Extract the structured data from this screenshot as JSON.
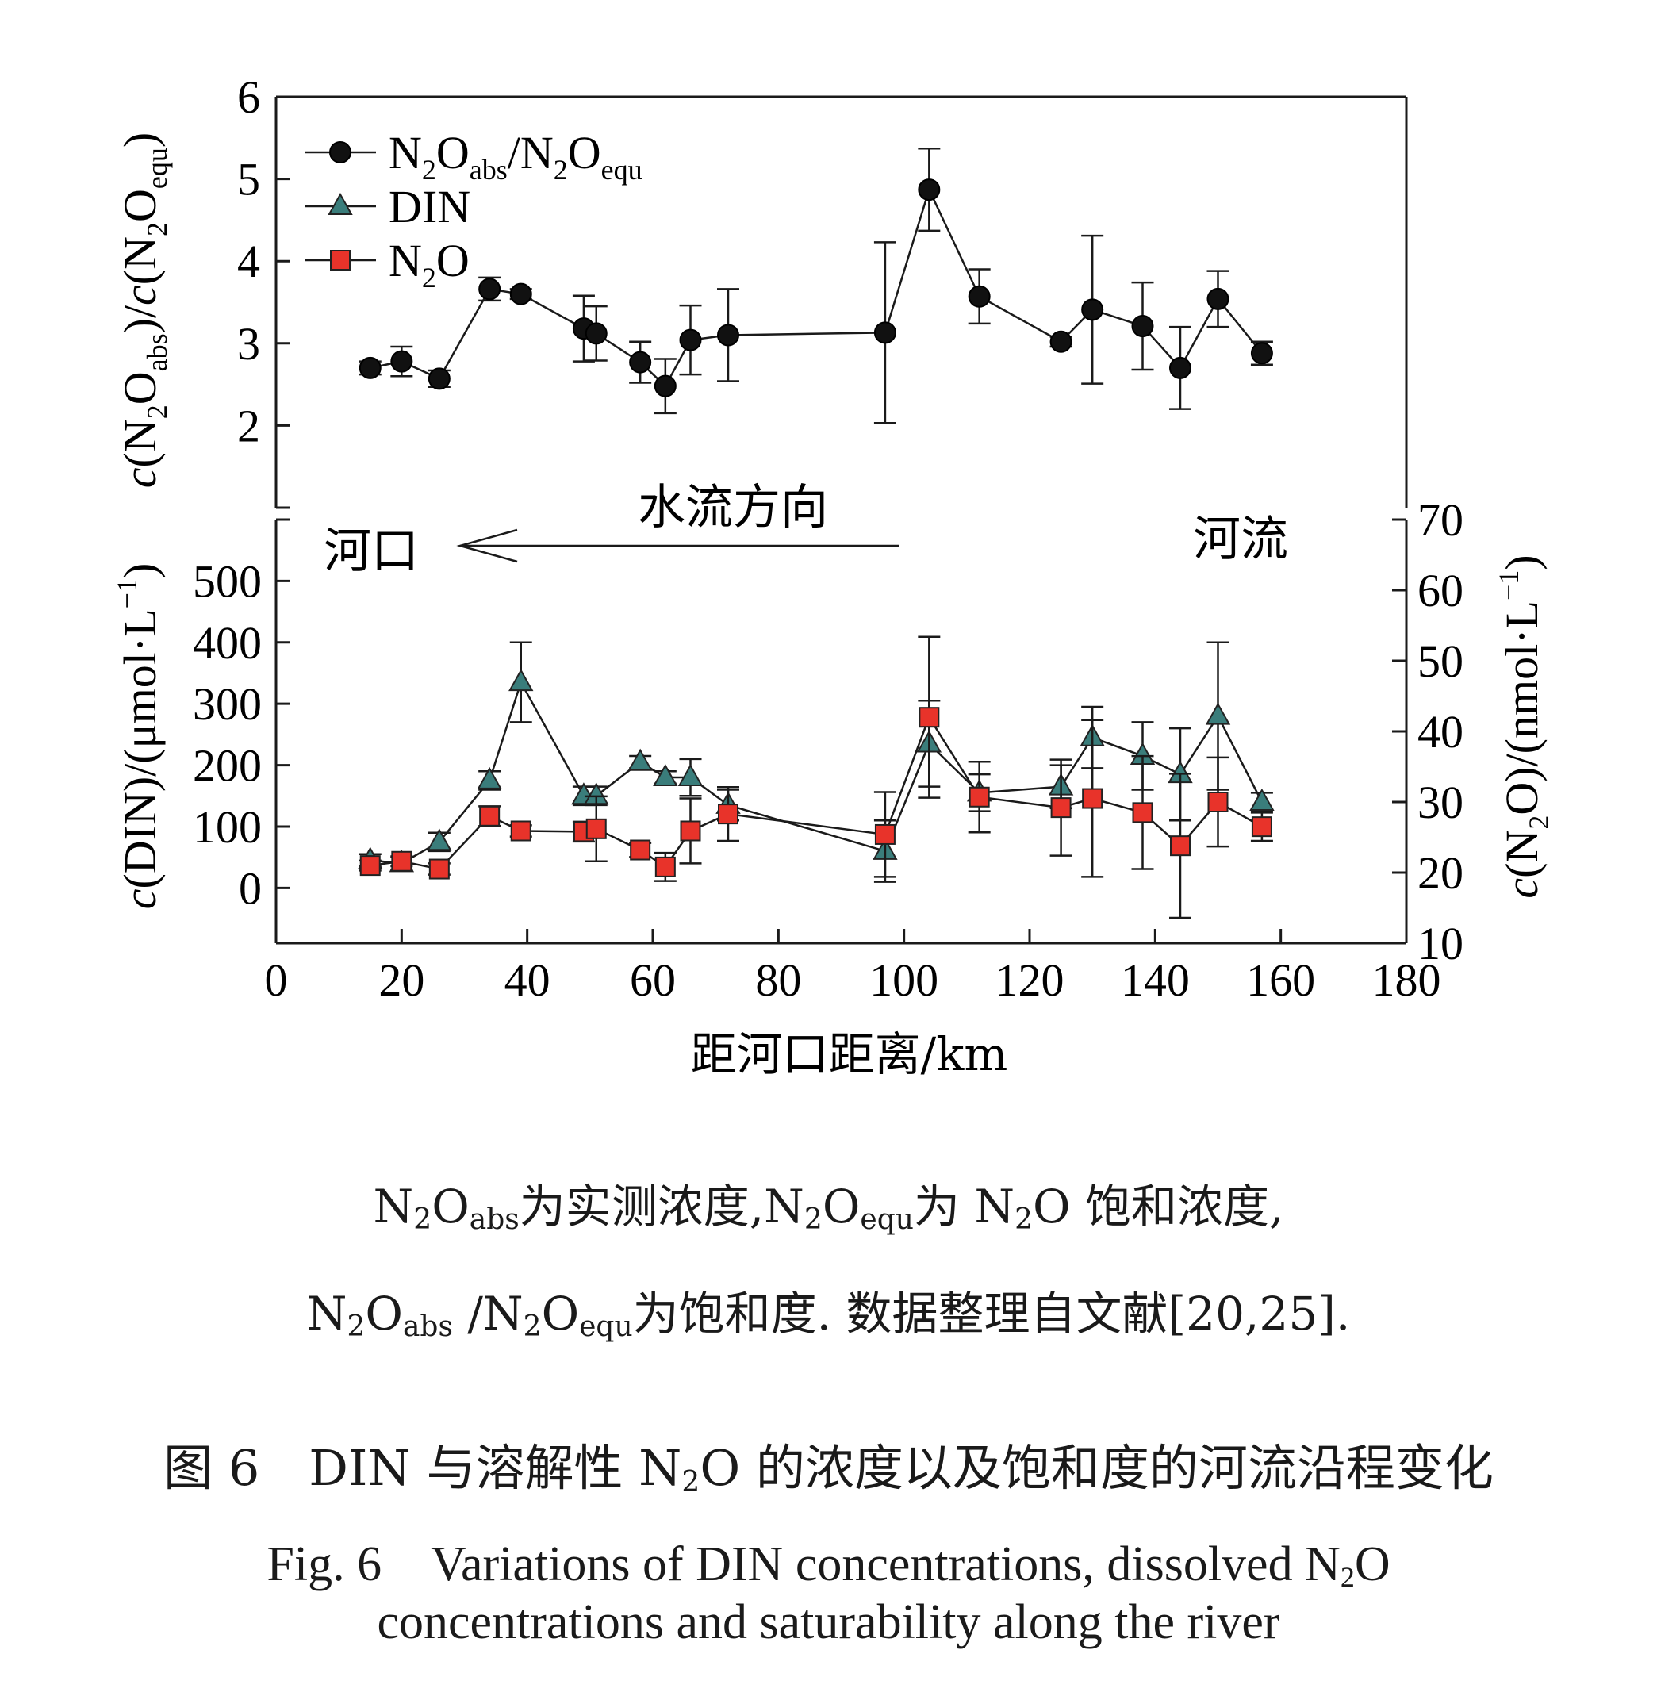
{
  "chart_data": [
    {
      "type": "line",
      "panel": "top",
      "ylabel_parts": [
        "c",
        "(N",
        "2",
        "O",
        "abs",
        ")/",
        "c",
        "(N",
        "2",
        "O",
        "equ",
        ")"
      ],
      "x": [
        15,
        20,
        26,
        34,
        39,
        49,
        51,
        58,
        62,
        66,
        72,
        97,
        104,
        112,
        125,
        130,
        138,
        144,
        150,
        157
      ],
      "ylim": [
        1,
        6
      ],
      "yticks": [
        2,
        3,
        4,
        5,
        6
      ],
      "series": [
        {
          "name": "N2Oabs/N2Oequ",
          "marker": "circle",
          "color": "#111111",
          "values": [
            2.7,
            2.78,
            2.57,
            3.66,
            3.6,
            3.18,
            3.12,
            2.77,
            2.48,
            3.04,
            3.1,
            3.13,
            4.87,
            3.57,
            3.02,
            3.41,
            3.21,
            2.7,
            3.54,
            2.88
          ],
          "errors": [
            0.08,
            0.18,
            0.1,
            0.14,
            0.06,
            0.4,
            0.33,
            0.25,
            0.33,
            0.42,
            0.56,
            1.1,
            0.5,
            0.33,
            0.06,
            0.9,
            0.53,
            0.5,
            0.34,
            0.14
          ]
        }
      ]
    },
    {
      "type": "line",
      "panel": "bottom",
      "x": [
        15,
        20,
        26,
        34,
        39,
        49,
        51,
        58,
        62,
        66,
        72,
        97,
        104,
        112,
        125,
        130,
        138,
        144,
        150,
        157
      ],
      "ylim_left": [
        -90,
        600
      ],
      "yticks_left": [
        0,
        100,
        200,
        300,
        400,
        500
      ],
      "ylim_right": [
        10,
        70
      ],
      "yticks_right": [
        10,
        20,
        30,
        40,
        50,
        60,
        70
      ],
      "series": [
        {
          "name": "DIN",
          "axis": "left",
          "marker": "triangle",
          "color": "#3a7d7b",
          "values": [
            45,
            40,
            75,
            175,
            335,
            150,
            150,
            205,
            180,
            180,
            135,
            60,
            235,
            155,
            165,
            245,
            215,
            185,
            280,
            140
          ],
          "errors": [
            10,
            10,
            15,
            15,
            65,
            15,
            15,
            10,
            10,
            30,
            25,
            50,
            70,
            30,
            35,
            50,
            55,
            75,
            120,
            15
          ]
        },
        {
          "name": "N2O",
          "axis": "right",
          "marker": "square",
          "color": "#e8332a",
          "values": [
            21.0,
            21.6,
            20.5,
            28.0,
            25.9,
            25.8,
            26.2,
            23.2,
            20.8,
            25.9,
            28.3,
            25.4,
            42.0,
            30.7,
            29.2,
            30.5,
            28.5,
            23.8,
            30.0,
            26.5
          ],
          "errors": [
            0.7,
            0.7,
            0.8,
            1.4,
            0.8,
            1.4,
            4.6,
            1.0,
            2.0,
            4.6,
            3.8,
            6.0,
            11.4,
            5.0,
            6.8,
            11.1,
            8.0,
            10.2,
            6.3,
            2.0
          ]
        }
      ]
    }
  ],
  "axes": {
    "xticks": [
      0,
      20,
      40,
      60,
      80,
      100,
      120,
      140,
      160,
      180
    ],
    "xlim": [
      0,
      180
    ],
    "xlabel": "距河口距离/km",
    "bottom_left_label_parts": [
      "c",
      "(DIN)/(μmol·L",
      "−1",
      ")"
    ],
    "bottom_right_label_parts": [
      "c",
      "(N",
      "2",
      "O)/(nmol·L",
      "−1",
      ")"
    ]
  },
  "legend": [
    {
      "parts": [
        "N",
        "2",
        "O",
        "abs",
        "/N",
        "2",
        "O",
        "equ"
      ]
    },
    {
      "parts": [
        "DIN"
      ]
    },
    {
      "parts": [
        "N",
        "2",
        "O"
      ]
    }
  ],
  "annotations": {
    "flow_direction": "水流方向",
    "estuary": "河口",
    "river": "河流"
  },
  "caption": {
    "note_line1_parts": [
      "N",
      "2",
      "O",
      "abs",
      "为实测浓度,",
      "N",
      "2",
      "O",
      "equ",
      "为 ",
      "N",
      "2",
      "O 饱和浓度,"
    ],
    "note_line2_parts": [
      "N",
      "2",
      "O",
      "abs",
      " /",
      "N",
      "2",
      "O",
      "equ",
      "为饱和度. 数据整理自文献[20,25]."
    ],
    "title_cn_parts": [
      "图 6　DIN 与溶解性 N",
      "2",
      "O 的浓度以及饱和度的河流沿程变化"
    ],
    "title_en_line1_parts": [
      "Fig. 6　Variations of DIN concentrations, dissolved N",
      "2",
      "O"
    ],
    "title_en_line2": "concentrations and saturability along the river"
  }
}
